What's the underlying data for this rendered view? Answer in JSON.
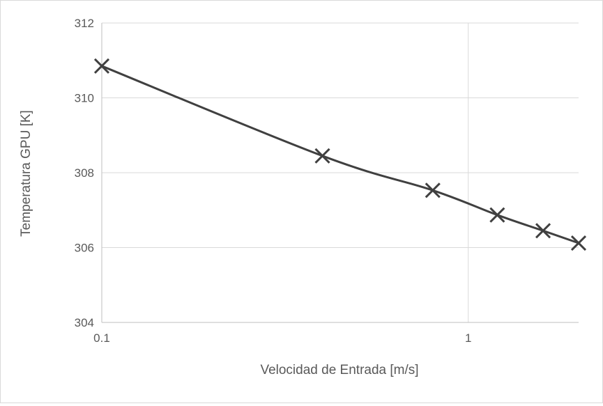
{
  "chart_data": {
    "type": "line",
    "title": "",
    "xlabel": "Velocidad de Entrada [m/s]",
    "ylabel": "Temperatura GPU [K]",
    "x_scale": "log",
    "xlim": [
      0.1,
      2
    ],
    "ylim": [
      304,
      312
    ],
    "x_ticks": [
      0.1,
      1
    ],
    "x_tick_labels": [
      "0.1",
      "1"
    ],
    "y_ticks": [
      304,
      306,
      308,
      310,
      312
    ],
    "y_tick_labels": [
      "304",
      "306",
      "308",
      "310",
      "312"
    ],
    "grid": true,
    "legend": "none",
    "marker": "x",
    "series": [
      {
        "x": [
          0.1,
          0.4,
          0.8,
          1.2,
          1.6,
          2.0
        ],
        "y": [
          310.85,
          308.45,
          307.53,
          306.87,
          306.45,
          306.12
        ],
        "color": "#404040"
      }
    ],
    "colors": {
      "line": "#404040",
      "grid": "#d9d9d9",
      "axis": "#bfbfbf",
      "text": "#595959"
    }
  }
}
